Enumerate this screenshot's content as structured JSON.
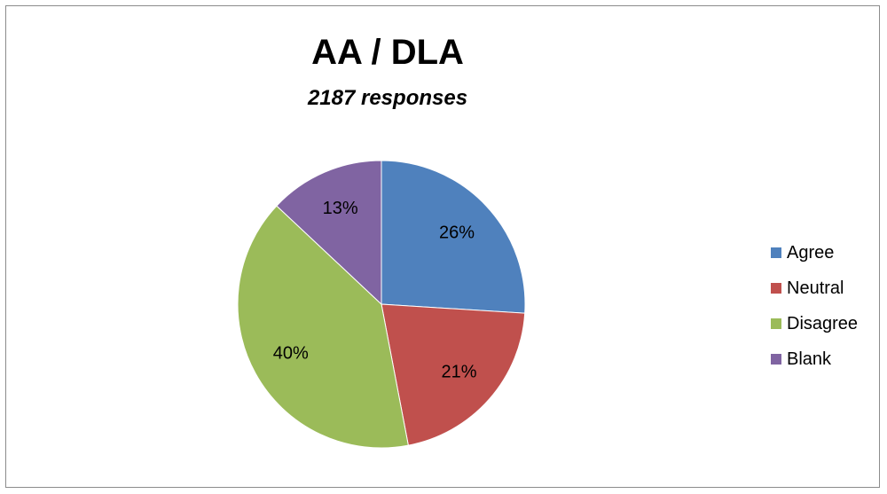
{
  "chart_data": {
    "type": "pie",
    "title": "AA / DLA",
    "subtitle": "2187 responses",
    "categories": [
      "Agree",
      "Neutral",
      "Disagree",
      "Blank"
    ],
    "values": [
      26,
      21,
      40,
      13
    ],
    "labels": [
      "26%",
      "21%",
      "40%",
      "13%"
    ],
    "colors": [
      "#4f81bd",
      "#c0504d",
      "#9bbb59",
      "#8064a2"
    ],
    "legend": "right"
  }
}
